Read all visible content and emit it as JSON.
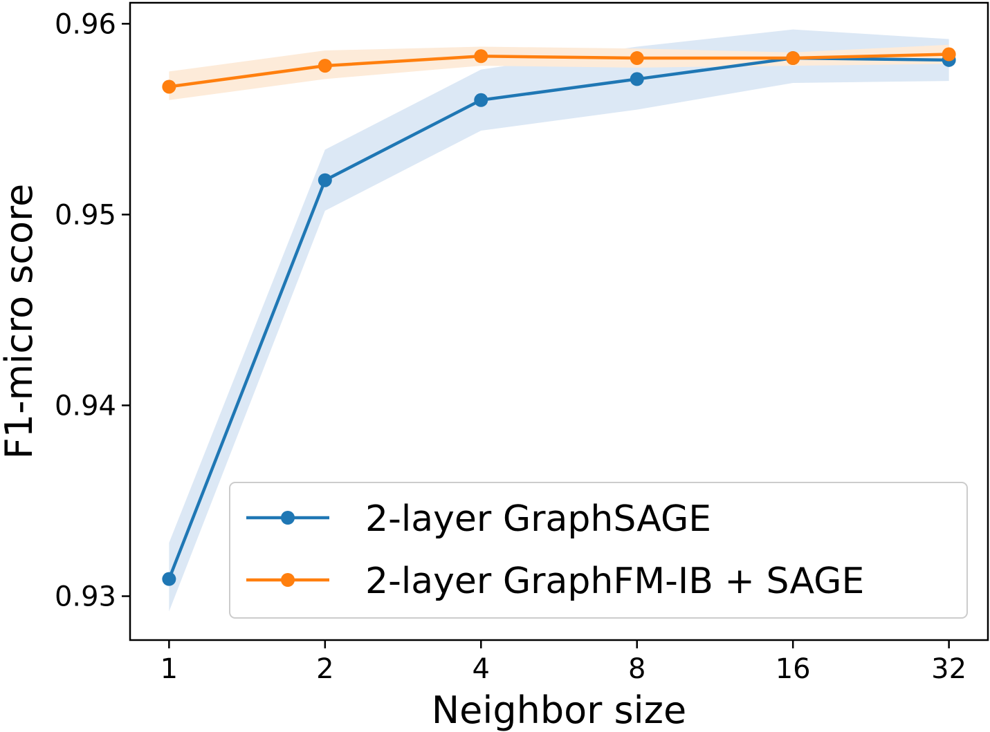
{
  "chart_data": {
    "type": "line",
    "title": "",
    "xlabel": "Neighbor size",
    "ylabel": "F1-micro score",
    "x_scale": "log2",
    "categories": [
      "1",
      "2",
      "4",
      "8",
      "16",
      "32"
    ],
    "x": [
      1,
      2,
      4,
      8,
      16,
      32
    ],
    "ylim": [
      0.9277,
      0.9611
    ],
    "yticks": [
      0.93,
      0.94,
      0.95,
      0.96
    ],
    "ytick_labels": [
      "0.93",
      "0.94",
      "0.95",
      "0.96"
    ],
    "grid": false,
    "legend_position": "lower-right",
    "series": [
      {
        "name": "2-layer GraphSAGE",
        "color": "#1f77b4",
        "band_color": "#dce8f5",
        "values": [
          0.9309,
          0.9518,
          0.956,
          0.9571,
          0.9582,
          0.9581
        ],
        "lower": [
          0.9292,
          0.9502,
          0.9544,
          0.9555,
          0.9569,
          0.957
        ],
        "upper": [
          0.9328,
          0.9534,
          0.9576,
          0.9588,
          0.9597,
          0.9592
        ]
      },
      {
        "name": "2-layer GraphFM-IB + SAGE",
        "color": "#ff7f0e",
        "band_color": "#fdebd9",
        "values": [
          0.9567,
          0.9578,
          0.9583,
          0.9582,
          0.9582,
          0.9584
        ],
        "lower": [
          0.956,
          0.9571,
          0.9578,
          0.9577,
          0.9578,
          0.9579
        ],
        "upper": [
          0.9575,
          0.9586,
          0.9588,
          0.9587,
          0.9585,
          0.9589
        ]
      }
    ]
  }
}
